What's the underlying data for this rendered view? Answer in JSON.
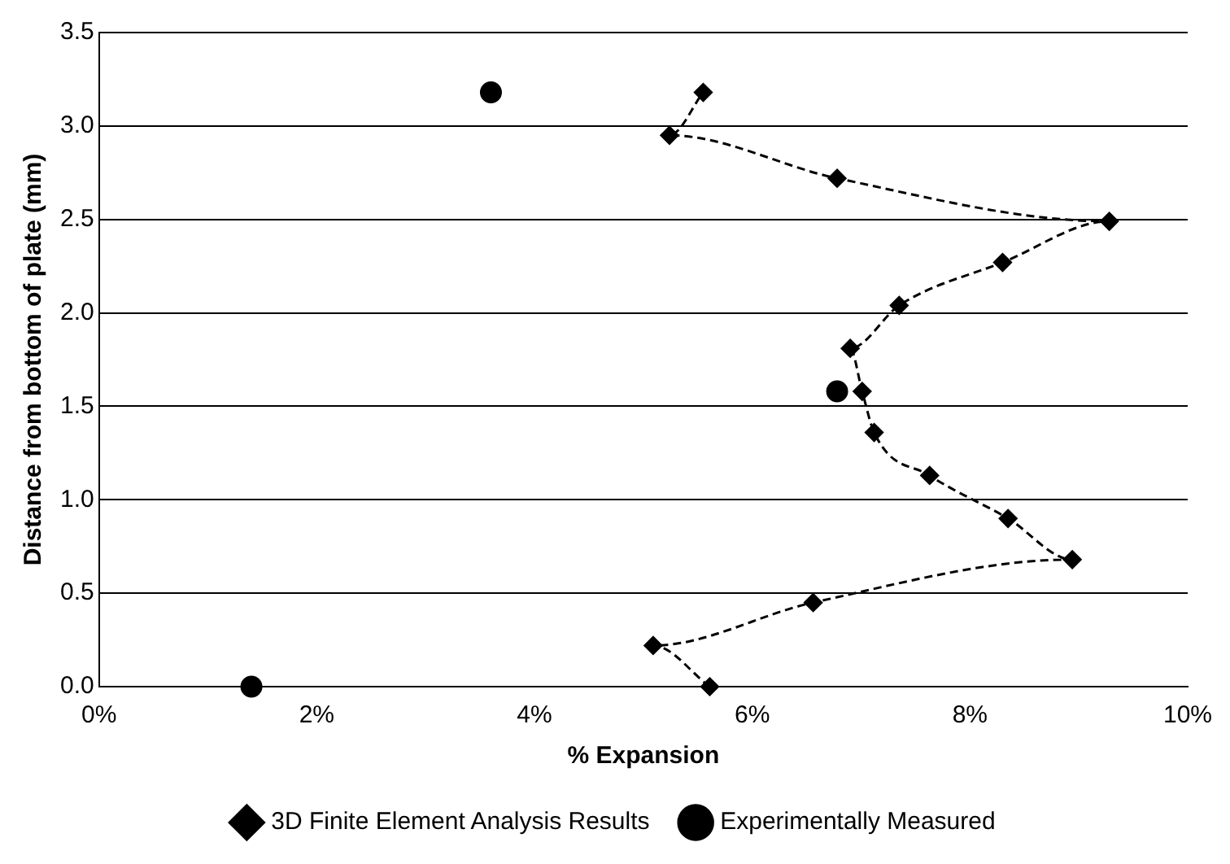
{
  "chart_data": {
    "type": "scatter",
    "xlabel": "% Expansion",
    "ylabel": "Distance from bottom of plate (mm)",
    "xlim": [
      0,
      10
    ],
    "xticks": [
      {
        "value": 0,
        "label": "0%"
      },
      {
        "value": 2,
        "label": "2%"
      },
      {
        "value": 4,
        "label": "4%"
      },
      {
        "value": 6,
        "label": "6%"
      },
      {
        "value": 8,
        "label": "8%"
      },
      {
        "value": 10,
        "label": "10%"
      }
    ],
    "ylim": [
      0,
      3.5
    ],
    "yticks": [
      {
        "value": 0,
        "label": "0.0"
      },
      {
        "value": 0.5,
        "label": "0.5"
      },
      {
        "value": 1,
        "label": "1.0"
      },
      {
        "value": 1.5,
        "label": "1.5"
      },
      {
        "value": 2,
        "label": "2.0"
      },
      {
        "value": 2.5,
        "label": "2.5"
      },
      {
        "value": 3,
        "label": "3.0"
      },
      {
        "value": 3.5,
        "label": "3.5"
      }
    ],
    "grid": "y",
    "legend": "bottom",
    "series": [
      {
        "name": "3D Finite Element Analysis Results",
        "type": "line",
        "color": "#000000",
        "marker": "diamond",
        "line_style": "dashed",
        "x": [
          5.61,
          5.09,
          6.56,
          8.94,
          8.35,
          7.63,
          7.12,
          7.01,
          6.9,
          7.35,
          8.3,
          9.28,
          6.78,
          5.24,
          5.55
        ],
        "values": [
          0,
          0.22,
          0.45,
          0.68,
          0.9,
          1.13,
          1.36,
          1.58,
          1.81,
          2.04,
          2.27,
          2.49,
          2.72,
          2.95,
          3.18
        ]
      },
      {
        "name": "Experimentally Measured",
        "type": "scatter",
        "color": "#000000",
        "marker": "circle",
        "x": [
          1.4,
          6.78,
          3.6
        ],
        "values": [
          0,
          1.58,
          3.18
        ]
      }
    ]
  }
}
